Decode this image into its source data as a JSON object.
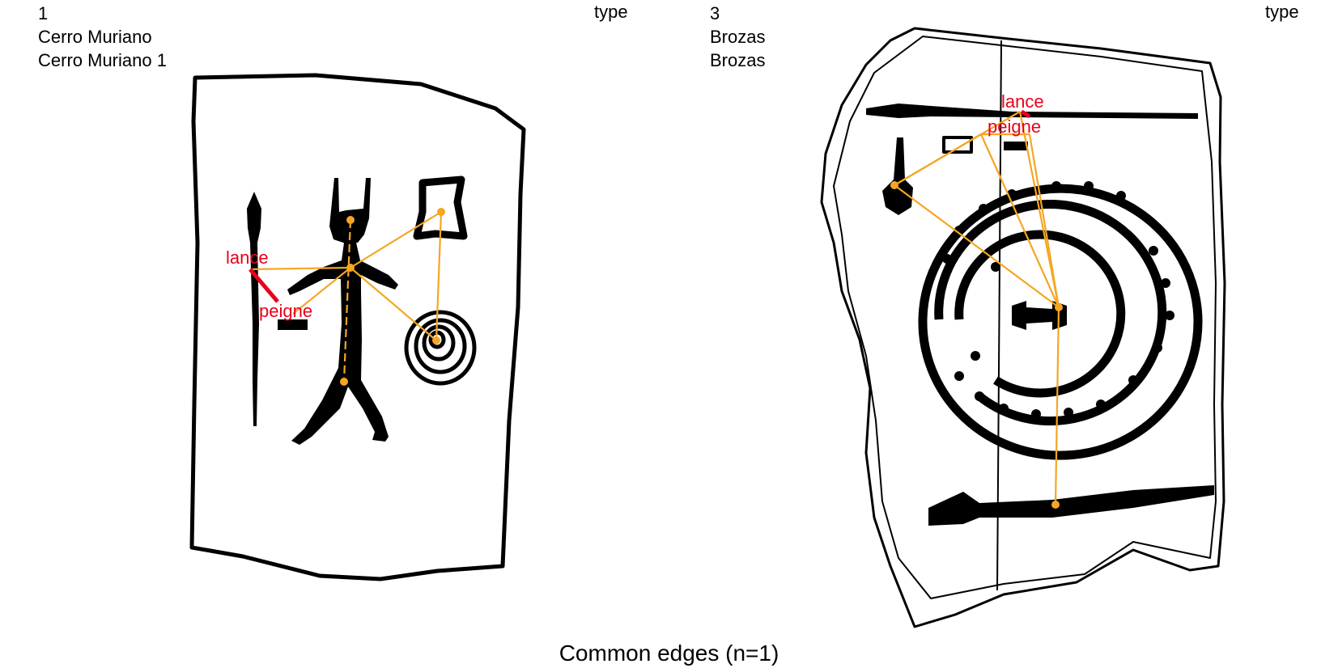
{
  "panels": [
    {
      "number": "1",
      "site": "Cerro Muriano",
      "name": "Cerro Muriano 1",
      "type_label": "type",
      "labels": {
        "lance": "lance",
        "peigne": "peigne"
      }
    },
    {
      "number": "3",
      "site": "Brozas",
      "name": "Brozas",
      "type_label": "type",
      "labels": {
        "lance": "lance",
        "peigne": "peigne"
      }
    }
  ],
  "caption": "Common edges (n=1)",
  "colors": {
    "edge": "#f5a623",
    "common_edge": "#e8001c",
    "label": "#e8001c",
    "ink": "#000000"
  }
}
